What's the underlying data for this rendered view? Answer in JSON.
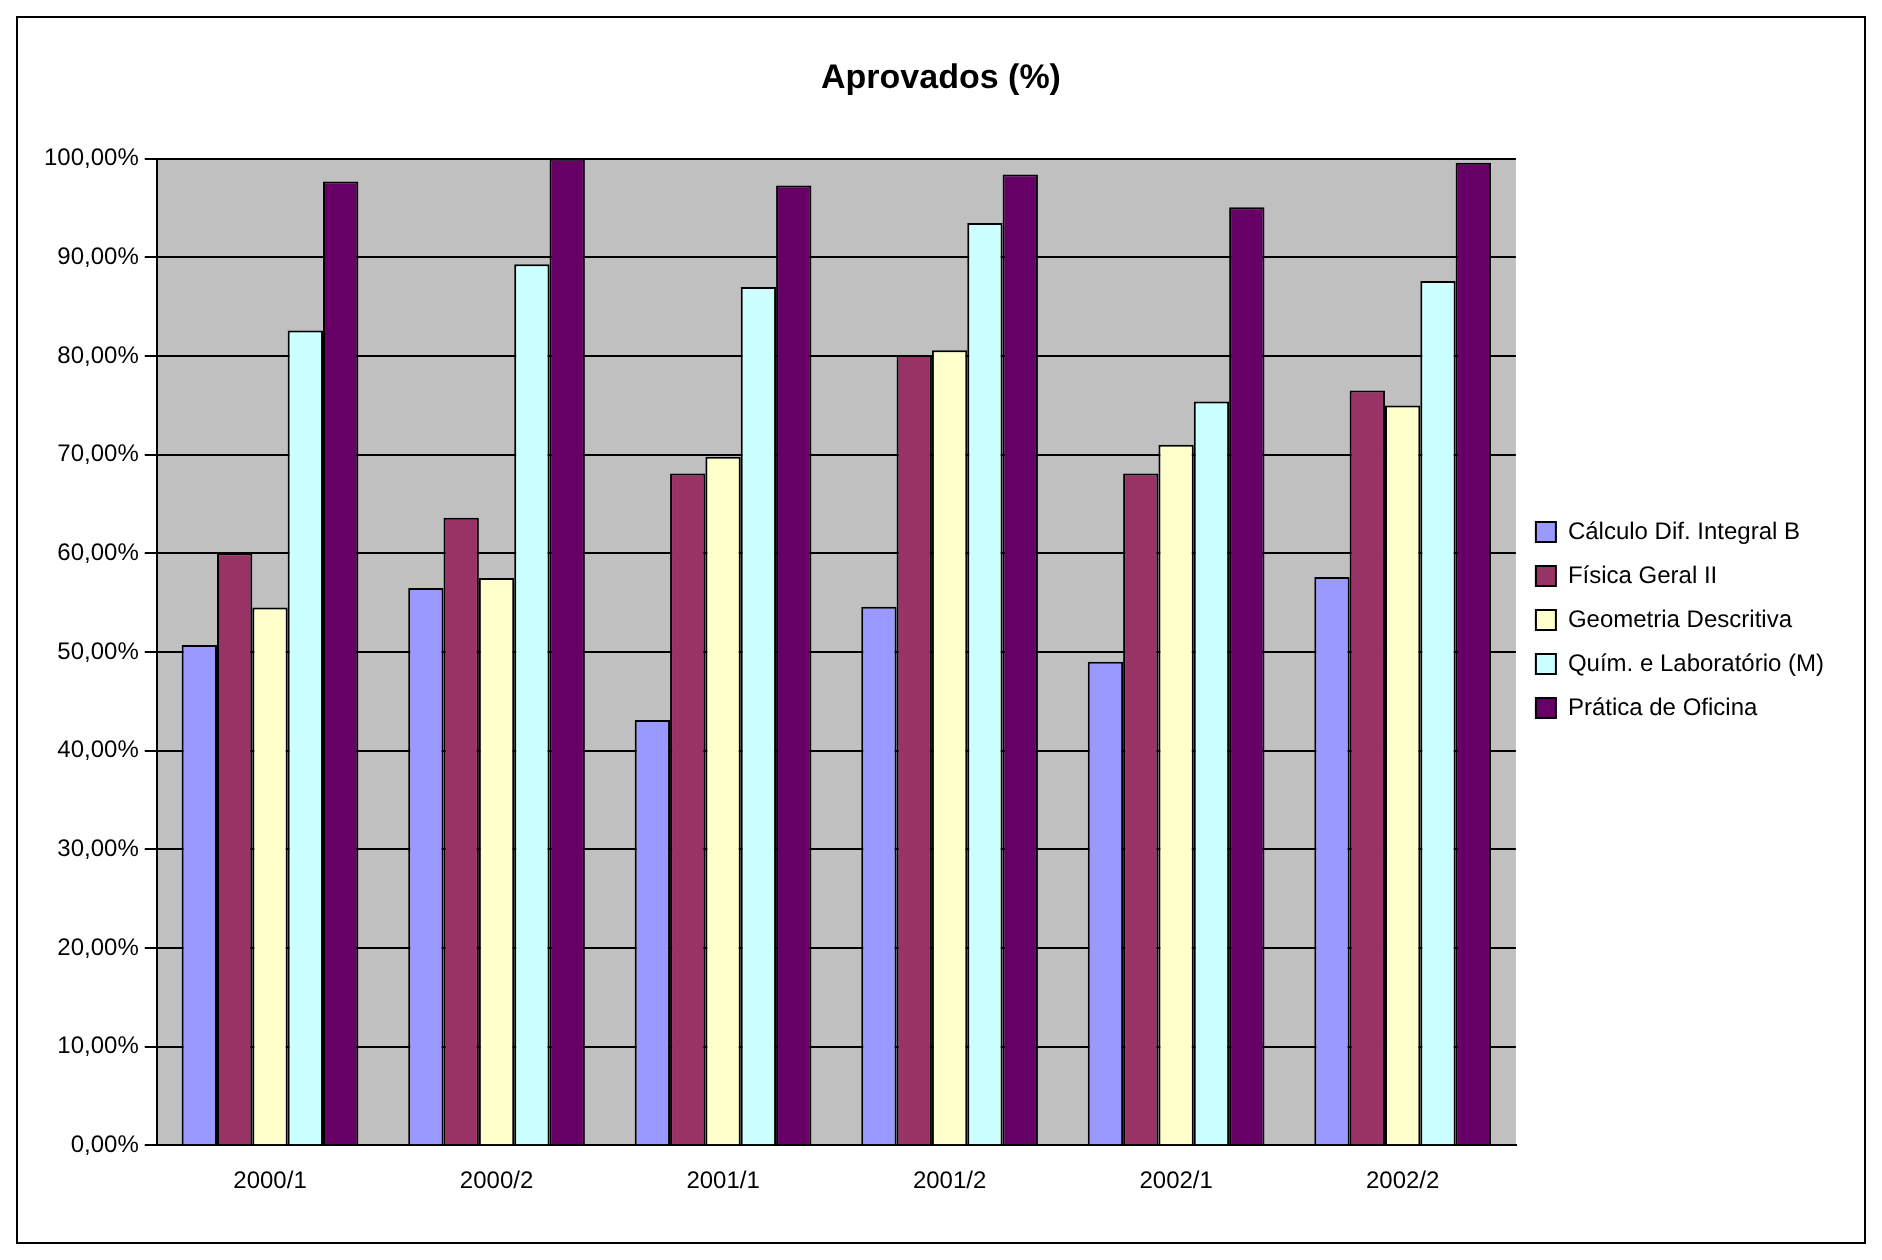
{
  "chart_data": {
    "type": "bar",
    "title": "Aprovados (%)",
    "categories": [
      "2000/1",
      "2000/2",
      "2001/1",
      "2001/2",
      "2002/1",
      "2002/2"
    ],
    "series": [
      {
        "name": "Cálculo Dif. Integral B",
        "color": "#9999ff",
        "values": [
          50.7,
          56.5,
          43.1,
          54.6,
          49.0,
          57.6
        ]
      },
      {
        "name": "Física Geral II",
        "color": "#993366",
        "values": [
          60.0,
          63.6,
          68.1,
          80.1,
          68.1,
          76.5
        ]
      },
      {
        "name": "Geometria Descritiva",
        "color": "#ffffcc",
        "values": [
          54.5,
          57.5,
          69.8,
          80.6,
          71.0,
          75.0
        ]
      },
      {
        "name": "Quím. e Laboratório (M)",
        "color": "#ccffff",
        "values": [
          82.6,
          89.3,
          87.0,
          93.5,
          75.4,
          87.6
        ]
      },
      {
        "name": "Prática de Oficina",
        "color": "#660066",
        "values": [
          97.7,
          100,
          97.3,
          98.4,
          95.1,
          99.6
        ]
      }
    ],
    "ylim": [
      0,
      100
    ],
    "yticks": [
      {
        "value": 0,
        "label": "0,00%"
      },
      {
        "value": 10,
        "label": "10,00%"
      },
      {
        "value": 20,
        "label": "20,00%"
      },
      {
        "value": 30,
        "label": "30,00%"
      },
      {
        "value": 40,
        "label": "40,00%"
      },
      {
        "value": 50,
        "label": "50,00%"
      },
      {
        "value": 60,
        "label": "60,00%"
      },
      {
        "value": 70,
        "label": "70,00%"
      },
      {
        "value": 80,
        "label": "80,00%"
      },
      {
        "value": 90,
        "label": "90,00%"
      },
      {
        "value": 100,
        "label": "100,00%"
      }
    ],
    "grid": "y",
    "legend": "right"
  }
}
